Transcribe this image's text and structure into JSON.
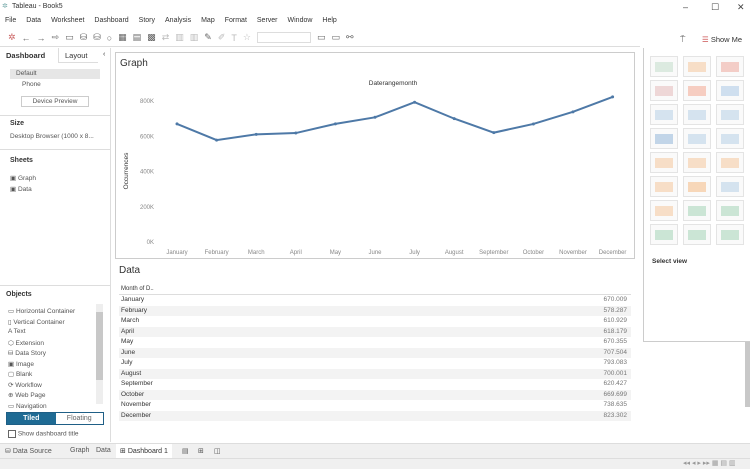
{
  "window": {
    "title": "Tableau - Book5"
  },
  "menu": [
    "File",
    "Data",
    "Worksheet",
    "Dashboard",
    "Story",
    "Analysis",
    "Map",
    "Format",
    "Server",
    "Window",
    "Help"
  ],
  "left_panel": {
    "tabs": [
      "Dashboard",
      "Layout"
    ],
    "devices": [
      "Default",
      "Phone"
    ],
    "device_preview": "Device Preview",
    "size_label": "Size",
    "size_value": "Desktop Browser (1000 x 8...",
    "sheets_label": "Sheets",
    "sheets": [
      "Graph",
      "Data"
    ],
    "objects_label": "Objects",
    "objects": [
      "Horizontal Container",
      "Vertical Container",
      "Text",
      "Extension",
      "Data Story",
      "Image",
      "Blank",
      "Workflow",
      "Web Page",
      "Navigation"
    ],
    "tiled": "Tiled",
    "floating": "Floating",
    "show_title": "Show dashboard title"
  },
  "graph": {
    "title": "Graph"
  },
  "chart_data": {
    "type": "line",
    "title": "Daterangemonth",
    "ylabel": "Occurrences",
    "xlabel": "",
    "categories": [
      "January",
      "February",
      "March",
      "April",
      "May",
      "June",
      "July",
      "August",
      "September",
      "October",
      "November",
      "December"
    ],
    "values": [
      670009,
      578287,
      610929,
      618179,
      670355,
      707504,
      793083,
      700001,
      620427,
      669699,
      738635,
      823302
    ],
    "yticks": [
      "0K",
      "200K",
      "400K",
      "600K",
      "800K"
    ],
    "ylim": [
      0,
      860000
    ],
    "color": "#4e79a7",
    "grid": false
  },
  "data_table": {
    "title": "Data",
    "header": "Month of D..",
    "rows": [
      [
        "January",
        "670.009"
      ],
      [
        "February",
        "578.287"
      ],
      [
        "March",
        "610.929"
      ],
      [
        "April",
        "618.179"
      ],
      [
        "May",
        "670.355"
      ],
      [
        "June",
        "707.504"
      ],
      [
        "July",
        "793.083"
      ],
      [
        "August",
        "700.001"
      ],
      [
        "September",
        "620.427"
      ],
      [
        "October",
        "669.699"
      ],
      [
        "November",
        "738.635"
      ],
      [
        "December",
        "823.302"
      ]
    ]
  },
  "show_me": {
    "label": "Show Me",
    "select_view": "Select view"
  },
  "bottom_tabs": {
    "data_source": "Data Source",
    "sheets": [
      "Graph",
      "Data"
    ],
    "dashboard": "Dashboard 1"
  }
}
